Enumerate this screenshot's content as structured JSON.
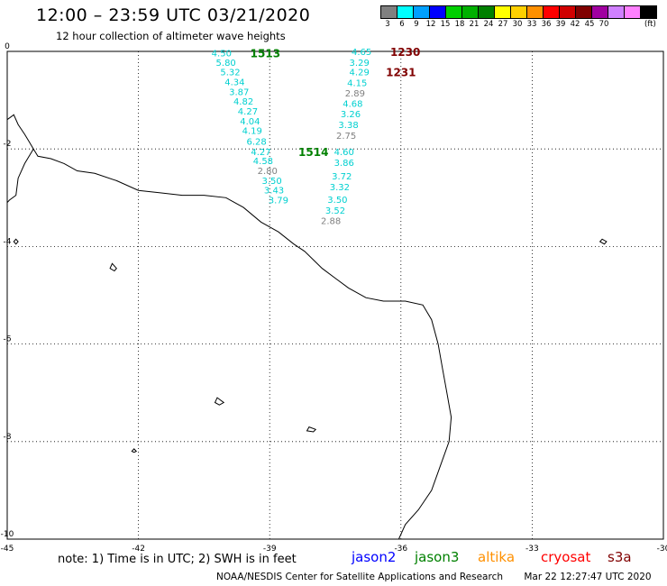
{
  "header": {
    "title": "12:00 – 23:59 UTC 03/21/2020",
    "subtitle": "12 hour collection of altimeter wave heights"
  },
  "legend": {
    "unit": "(ft)",
    "bins": [
      {
        "label": "3",
        "color": "#808080"
      },
      {
        "label": "6",
        "color": "#00ffff"
      },
      {
        "label": "9",
        "color": "#00a0ff"
      },
      {
        "label": "12",
        "color": "#0000ff"
      },
      {
        "label": "15",
        "color": "#00d000"
      },
      {
        "label": "18",
        "color": "#00b000"
      },
      {
        "label": "21",
        "color": "#008000"
      },
      {
        "label": "24",
        "color": "#ffff00"
      },
      {
        "label": "27",
        "color": "#ffd000"
      },
      {
        "label": "30",
        "color": "#ff9000"
      },
      {
        "label": "33",
        "color": "#ff0000"
      },
      {
        "label": "36",
        "color": "#d00000"
      },
      {
        "label": "39",
        "color": "#800000"
      },
      {
        "label": "42",
        "color": "#a000a0"
      },
      {
        "label": "45",
        "color": "#d080ff"
      },
      {
        "label": "70",
        "color": "#ff80ff"
      },
      {
        "label": "",
        "color": "#000000"
      }
    ]
  },
  "map": {
    "lon_range": [
      -45,
      -30
    ],
    "lat_range": [
      -10,
      0
    ],
    "x_ticks": [
      {
        "value": -45,
        "label": "-45"
      },
      {
        "value": -42,
        "label": "-42"
      },
      {
        "value": -39,
        "label": "-39"
      },
      {
        "value": -36,
        "label": "-36"
      },
      {
        "value": -33,
        "label": "-33"
      },
      {
        "value": -30,
        "label": "-30"
      }
    ],
    "y_ticks": [
      {
        "value": 0,
        "label": "0"
      },
      {
        "value": -2,
        "label": "-2"
      },
      {
        "value": -4,
        "label": "-4"
      },
      {
        "value": -6,
        "label": "-6"
      },
      {
        "value": -8,
        "label": "-8"
      },
      {
        "value": -10,
        "label": "-10"
      }
    ],
    "grid": "dotted"
  },
  "tracks": [
    {
      "time": "1513",
      "time_color": "#008000",
      "time_pos": {
        "lon": -39.1,
        "lat": -0.03
      },
      "points": [
        {
          "lon": -40.1,
          "lat": -0.03,
          "value": "4.50",
          "color": "#00d0d0"
        },
        {
          "lon": -40.0,
          "lat": -0.22,
          "value": "5.80",
          "color": "#00d0d0"
        },
        {
          "lon": -39.9,
          "lat": -0.42,
          "value": "5.32",
          "color": "#00d0d0"
        },
        {
          "lon": -39.8,
          "lat": -0.62,
          "value": "4.34",
          "color": "#00d0d0"
        },
        {
          "lon": -39.7,
          "lat": -0.82,
          "value": "3.87",
          "color": "#00d0d0"
        },
        {
          "lon": -39.6,
          "lat": -1.02,
          "value": "4.82",
          "color": "#00d0d0"
        },
        {
          "lon": -39.5,
          "lat": -1.22,
          "value": "4.27",
          "color": "#00d0d0"
        },
        {
          "lon": -39.45,
          "lat": -1.42,
          "value": "4.04",
          "color": "#00d0d0"
        },
        {
          "lon": -39.4,
          "lat": -1.62,
          "value": "4.19",
          "color": "#00d0d0"
        },
        {
          "lon": -39.3,
          "lat": -1.84,
          "value": "6.28",
          "color": "#00d0d0"
        },
        {
          "lon": -39.2,
          "lat": -2.05,
          "value": "4.27",
          "color": "#00d0d0"
        },
        {
          "lon": -39.15,
          "lat": -2.24,
          "value": "4.58",
          "color": "#00d0d0"
        },
        {
          "lon": -39.05,
          "lat": -2.44,
          "value": "2.80",
          "color": "#808080"
        },
        {
          "lon": -38.95,
          "lat": -2.64,
          "value": "3.50",
          "color": "#00d0d0"
        },
        {
          "lon": -38.9,
          "lat": -2.84,
          "value": "3.43",
          "color": "#00d0d0"
        },
        {
          "lon": -38.8,
          "lat": -3.04,
          "value": "3.79",
          "color": "#00d0d0"
        }
      ]
    },
    {
      "time": "1514",
      "time_color": "#008000",
      "time_pos": {
        "lon": -38.0,
        "lat": -2.05
      },
      "points": []
    },
    {
      "time": "1230",
      "time_color": "#800000",
      "time_pos": {
        "lon": -35.9,
        "lat": -0.0
      },
      "points": [
        {
          "lon": -36.9,
          "lat": 0.0,
          "value": "4.65",
          "color": "#00d0d0"
        },
        {
          "lon": -36.95,
          "lat": -0.22,
          "value": "3.29",
          "color": "#00d0d0"
        },
        {
          "lon": -36.95,
          "lat": -0.42,
          "value": "4.29",
          "color": "#00d0d0"
        },
        {
          "lon": -37.0,
          "lat": -0.64,
          "value": "4.15",
          "color": "#00d0d0"
        },
        {
          "lon": -37.05,
          "lat": -0.85,
          "value": "2.89",
          "color": "#808080"
        },
        {
          "lon": -37.1,
          "lat": -1.06,
          "value": "4.68",
          "color": "#00d0d0"
        },
        {
          "lon": -37.15,
          "lat": -1.28,
          "value": "3.26",
          "color": "#00d0d0"
        },
        {
          "lon": -37.2,
          "lat": -1.5,
          "value": "3.38",
          "color": "#00d0d0"
        },
        {
          "lon": -37.25,
          "lat": -1.72,
          "value": "2.75",
          "color": "#808080"
        },
        {
          "lon": -37.3,
          "lat": -2.05,
          "value": "4.60",
          "color": "#00d0d0"
        },
        {
          "lon": -37.3,
          "lat": -2.27,
          "value": "3.86",
          "color": "#00d0d0"
        },
        {
          "lon": -37.35,
          "lat": -2.55,
          "value": "3.72",
          "color": "#00d0d0"
        },
        {
          "lon": -37.4,
          "lat": -2.77,
          "value": "3.32",
          "color": "#00d0d0"
        },
        {
          "lon": -37.45,
          "lat": -3.03,
          "value": "3.50",
          "color": "#00d0d0"
        },
        {
          "lon": -37.5,
          "lat": -3.25,
          "value": "3.52",
          "color": "#00d0d0"
        },
        {
          "lon": -37.6,
          "lat": -3.47,
          "value": "2.88",
          "color": "#808080"
        }
      ]
    },
    {
      "time": "1231",
      "time_color": "#800000",
      "time_pos": {
        "lon": -36.0,
        "lat": -0.42
      },
      "points": []
    }
  ],
  "coastline": {
    "main": [
      [
        -44.4,
        -2.0
      ],
      [
        -44.3,
        -2.15
      ],
      [
        -44.0,
        -2.2
      ],
      [
        -43.7,
        -2.3
      ],
      [
        -43.4,
        -2.45
      ],
      [
        -43.0,
        -2.5
      ],
      [
        -42.5,
        -2.65
      ],
      [
        -42.0,
        -2.85
      ],
      [
        -41.5,
        -2.9
      ],
      [
        -41.0,
        -2.95
      ],
      [
        -40.5,
        -2.95
      ],
      [
        -40.0,
        -3.0
      ],
      [
        -39.6,
        -3.2
      ],
      [
        -39.2,
        -3.5
      ],
      [
        -38.8,
        -3.7
      ],
      [
        -38.45,
        -3.95
      ],
      [
        -38.2,
        -4.1
      ],
      [
        -37.8,
        -4.45
      ],
      [
        -37.5,
        -4.65
      ],
      [
        -37.2,
        -4.85
      ],
      [
        -36.8,
        -5.05
      ],
      [
        -36.4,
        -5.12
      ],
      [
        -35.9,
        -5.12
      ],
      [
        -35.5,
        -5.2
      ],
      [
        -35.3,
        -5.5
      ],
      [
        -35.15,
        -6.0
      ],
      [
        -35.05,
        -6.5
      ],
      [
        -34.95,
        -7.0
      ],
      [
        -34.85,
        -7.5
      ],
      [
        -34.9,
        -8.0
      ],
      [
        -35.1,
        -8.5
      ],
      [
        -35.3,
        -9.0
      ],
      [
        -35.6,
        -9.4
      ],
      [
        -35.9,
        -9.7
      ],
      [
        -36.05,
        -10.0
      ]
    ],
    "west": [
      [
        -45.0,
        -1.4
      ],
      [
        -44.85,
        -1.3
      ],
      [
        -44.75,
        -1.5
      ],
      [
        -44.6,
        -1.7
      ],
      [
        -44.5,
        -1.85
      ],
      [
        -44.4,
        -2.0
      ],
      [
        -44.6,
        -2.3
      ],
      [
        -44.75,
        -2.6
      ],
      [
        -44.8,
        -2.95
      ],
      [
        -44.95,
        -3.05
      ],
      [
        -45.0,
        -3.1
      ]
    ],
    "islands": [
      [
        [
          -42.6,
          -4.35
        ],
        [
          -42.5,
          -4.45
        ],
        [
          -42.55,
          -4.5
        ],
        [
          -42.65,
          -4.45
        ],
        [
          -42.6,
          -4.35
        ]
      ],
      [
        [
          -40.2,
          -7.1
        ],
        [
          -40.05,
          -7.2
        ],
        [
          -40.15,
          -7.25
        ],
        [
          -40.25,
          -7.2
        ],
        [
          -40.2,
          -7.1
        ]
      ],
      [
        [
          -38.1,
          -7.7
        ],
        [
          -37.95,
          -7.75
        ],
        [
          -38.0,
          -7.8
        ],
        [
          -38.15,
          -7.78
        ],
        [
          -38.1,
          -7.7
        ]
      ],
      [
        [
          -44.8,
          -3.85
        ],
        [
          -44.75,
          -3.9
        ],
        [
          -44.8,
          -3.95
        ],
        [
          -44.85,
          -3.9
        ],
        [
          -44.8,
          -3.85
        ]
      ],
      [
        [
          -31.4,
          -3.85
        ],
        [
          -31.3,
          -3.9
        ],
        [
          -31.35,
          -3.95
        ],
        [
          -31.45,
          -3.9
        ],
        [
          -31.4,
          -3.85
        ]
      ],
      [
        [
          -42.1,
          -8.15
        ],
        [
          -42.05,
          -8.2
        ],
        [
          -42.1,
          -8.22
        ],
        [
          -42.15,
          -8.2
        ],
        [
          -42.1,
          -8.15
        ]
      ]
    ]
  },
  "note": "note: 1) Time is in UTC; 2) SWH is in feet",
  "satellites": [
    {
      "name": "jason2",
      "color": "#0000ff"
    },
    {
      "name": "jason3",
      "color": "#008000"
    },
    {
      "name": "altika",
      "color": "#ff9000"
    },
    {
      "name": "cryosat",
      "color": "#ff0000"
    },
    {
      "name": "s3a",
      "color": "#800000"
    }
  ],
  "footer": {
    "credit": "NOAA/NESDIS Center for Satellite Applications and Research",
    "timestamp": "Mar 22 12:27:47 UTC 2020"
  }
}
